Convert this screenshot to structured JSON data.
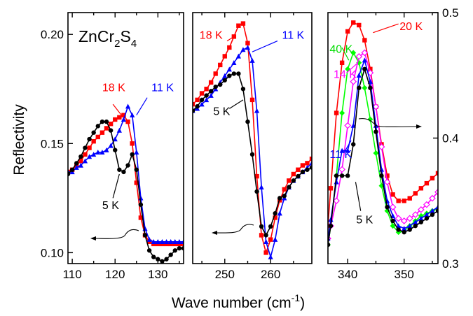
{
  "chart_data": {
    "type": "line",
    "xlabel": "Wave number (cm",
    "xlabel_sup": "-1",
    "xlabel_close": ")",
    "ylabel": "Reflectivity",
    "compound": {
      "base": "ZnCr",
      "sub1": "2",
      "mid": "S",
      "sub2": "4"
    },
    "colors": {
      "5 K": "#000000",
      "11 K": "#0000ff",
      "18 K": "#ff0000",
      "20 K": "#ff0000",
      "14 K": "#ff00ff",
      "40 K": "#00ff00"
    },
    "panels": [
      {
        "xlim": [
          109,
          136
        ],
        "ylim": [
          0.095,
          0.21
        ],
        "xticks": [
          110,
          120,
          130
        ],
        "xtick_labels": [
          "110",
          "120",
          "130"
        ],
        "yticks": [
          0.1,
          0.15,
          0.2
        ],
        "ytick_labels": [
          "0.10",
          "0.15",
          "0.20"
        ],
        "axis": "left",
        "series": [
          {
            "name": "18 K",
            "marker": "square",
            "x": [
              109,
              110,
              111,
              112,
              113,
              114,
              115,
              116,
              117,
              118,
              119,
              120,
              121,
              122,
              123,
              124,
              125,
              126,
              127,
              128,
              129,
              130,
              131,
              132,
              133,
              134,
              135,
              136
            ],
            "y": [
              0.137,
              0.138,
              0.14,
              0.142,
              0.145,
              0.148,
              0.151,
              0.153,
              0.155,
              0.157,
              0.159,
              0.161,
              0.162,
              0.163,
              0.16,
              0.15,
              0.132,
              0.116,
              0.108,
              0.105,
              0.104,
              0.104,
              0.104,
              0.104,
              0.104,
              0.104,
              0.104,
              0.104
            ]
          },
          {
            "name": "11 K",
            "marker": "triangle",
            "x": [
              109,
              110,
              111,
              112,
              113,
              114,
              115,
              116,
              117,
              118,
              119,
              120,
              121,
              122,
              123,
              124,
              125,
              126,
              127,
              128,
              129,
              130,
              131,
              132,
              133,
              134,
              135,
              136
            ],
            "y": [
              0.137,
              0.137,
              0.139,
              0.14,
              0.142,
              0.144,
              0.145,
              0.146,
              0.146,
              0.147,
              0.149,
              0.152,
              0.156,
              0.161,
              0.167,
              0.163,
              0.146,
              0.125,
              0.111,
              0.106,
              0.105,
              0.105,
              0.105,
              0.105,
              0.105,
              0.105,
              0.105,
              0.105
            ]
          },
          {
            "name": "5 K",
            "marker": "circle",
            "x": [
              109,
              110,
              111,
              112,
              113,
              114,
              115,
              116,
              117,
              118,
              119,
              120,
              121,
              122,
              123,
              124,
              125,
              126,
              127,
              128,
              129,
              130,
              131,
              132,
              133,
              134,
              135,
              136
            ],
            "y": [
              0.136,
              0.138,
              0.141,
              0.144,
              0.148,
              0.152,
              0.155,
              0.158,
              0.16,
              0.16,
              0.156,
              0.147,
              0.138,
              0.137,
              0.14,
              0.145,
              0.138,
              0.122,
              0.108,
              0.101,
              0.098,
              0.097,
              0.096,
              0.097,
              0.099,
              0.101,
              0.102,
              0.102
            ]
          }
        ],
        "labels": [
          {
            "text": "18 K",
            "color": "#ff0000",
            "at": [
              117.0,
              0.174
            ]
          },
          {
            "text": "11 K",
            "color": "#0000ff",
            "at": [
              128.5,
              0.174
            ]
          },
          {
            "text": "5 K",
            "color": "#000000",
            "at": [
              117.0,
              0.12
            ]
          }
        ],
        "leaders": [
          {
            "color": "#ff0000",
            "from": [
              119.5,
              0.168
            ],
            "to": [
              121.5,
              0.163
            ]
          },
          {
            "color": "#0000ff",
            "from": [
              127.5,
              0.171
            ],
            "to": [
              125.0,
              0.163
            ]
          },
          {
            "color": "#000000",
            "from": [
              119.5,
              0.125
            ],
            "to": [
              121.0,
              0.136
            ]
          }
        ]
      },
      {
        "xlim": [
          243,
          269
        ],
        "ylim": [
          0.095,
          0.21
        ],
        "xticks": [
          250,
          260
        ],
        "xtick_labels": [
          "250",
          "260"
        ],
        "yticks": [],
        "ytick_labels": [],
        "axis": "left",
        "series": [
          {
            "name": "18 K",
            "marker": "square",
            "x": [
              243,
              244,
              245,
              246,
              247,
              248,
              249,
              250,
              251,
              252,
              253,
              254,
              255,
              256,
              257,
              258,
              259,
              260,
              261,
              262,
              263,
              264,
              265,
              266,
              267,
              268,
              269
            ],
            "y": [
              0.168,
              0.17,
              0.173,
              0.175,
              0.178,
              0.182,
              0.186,
              0.19,
              0.194,
              0.199,
              0.204,
              0.205,
              0.196,
              0.17,
              0.135,
              0.108,
              0.1,
              0.106,
              0.116,
              0.124,
              0.129,
              0.133,
              0.136,
              0.138,
              0.14,
              0.141,
              0.143
            ]
          },
          {
            "name": "11 K",
            "marker": "triangle",
            "x": [
              243,
              244,
              245,
              246,
              247,
              248,
              249,
              250,
              251,
              252,
              253,
              254,
              255,
              256,
              257,
              258,
              259,
              260,
              261,
              262,
              263,
              264,
              265,
              266,
              267,
              268,
              269
            ],
            "y": [
              0.165,
              0.166,
              0.168,
              0.17,
              0.172,
              0.175,
              0.178,
              0.181,
              0.184,
              0.187,
              0.19,
              0.193,
              0.194,
              0.188,
              0.165,
              0.13,
              0.105,
              0.098,
              0.106,
              0.118,
              0.125,
              0.13,
              0.133,
              0.135,
              0.137,
              0.139,
              0.141
            ]
          },
          {
            "name": "5 K",
            "marker": "circle",
            "x": [
              243,
              244,
              245,
              246,
              247,
              248,
              249,
              250,
              251,
              252,
              253,
              254,
              255,
              256,
              257,
              258,
              259,
              260,
              261,
              262,
              263,
              264,
              265,
              266,
              267,
              268,
              269
            ],
            "y": [
              0.165,
              0.167,
              0.17,
              0.172,
              0.174,
              0.176,
              0.177,
              0.179,
              0.181,
              0.182,
              0.182,
              0.175,
              0.16,
              0.145,
              0.128,
              0.112,
              0.108,
              0.112,
              0.118,
              0.125,
              0.126,
              0.13,
              0.133,
              0.135,
              0.137,
              0.138,
              0.139
            ]
          }
        ],
        "labels": [
          {
            "text": "18 K",
            "color": "#ff0000",
            "at": [
              244.5,
              0.198
            ]
          },
          {
            "text": "11 K",
            "color": "#0000ff",
            "at": [
              262.5,
              0.198
            ]
          },
          {
            "text": "5 K",
            "color": "#000000",
            "at": [
              247.5,
              0.163
            ]
          }
        ],
        "leaders": [
          {
            "color": "#ff0000",
            "from": [
              250.5,
              0.197
            ],
            "to": [
              252.0,
              0.199
            ]
          },
          {
            "color": "#0000ff",
            "from": [
              261.5,
              0.197
            ],
            "to": [
              256.0,
              0.192
            ]
          },
          {
            "color": "#000000",
            "from": [
              251.0,
              0.166
            ],
            "to": [
              254.0,
              0.17
            ]
          }
        ]
      },
      {
        "xlim": [
          336.5,
          356
        ],
        "ylim": [
          0.3,
          0.5
        ],
        "xticks": [
          340,
          350
        ],
        "xtick_labels": [
          "340",
          "350"
        ],
        "yticks": [
          0.3,
          0.4,
          0.5
        ],
        "ytick_labels": [
          "0.3",
          "0.4",
          "0.5"
        ],
        "axis": "right",
        "series": [
          {
            "name": "20 K",
            "marker": "square",
            "x": [
              336.5,
              337,
              338,
              339,
              340,
              341,
              342,
              343,
              344,
              345,
              346,
              347,
              348,
              349,
              350,
              351,
              352,
              353,
              354,
              355,
              356
            ],
            "y": [
              0.33,
              0.36,
              0.42,
              0.46,
              0.485,
              0.492,
              0.49,
              0.478,
              0.455,
              0.425,
              0.395,
              0.37,
              0.355,
              0.35,
              0.35,
              0.352,
              0.356,
              0.36,
              0.364,
              0.368,
              0.372
            ]
          },
          {
            "name": "40 K",
            "marker": "diamond",
            "x": [
              336.5,
              337,
              338,
              339,
              340,
              341,
              342,
              343,
              344,
              345,
              346,
              347,
              348,
              349,
              350,
              351,
              352,
              353,
              354,
              355,
              356
            ],
            "y": [
              0.315,
              0.33,
              0.37,
              0.42,
              0.455,
              0.468,
              0.46,
              0.44,
              0.415,
              0.388,
              0.362,
              0.342,
              0.33,
              0.325,
              0.326,
              0.33,
              0.334,
              0.338,
              0.34,
              0.342,
              0.344
            ]
          },
          {
            "name": "14 K",
            "marker": "open-diamond",
            "x": [
              336.5,
              337,
              338,
              339,
              340,
              341,
              342,
              343,
              344,
              345,
              346,
              347,
              348,
              349,
              350,
              351,
              352,
              353,
              354,
              355,
              356
            ],
            "y": [
              0.32,
              0.33,
              0.35,
              0.375,
              0.41,
              0.445,
              0.465,
              0.468,
              0.452,
              0.425,
              0.393,
              0.365,
              0.345,
              0.336,
              0.334,
              0.336,
              0.339,
              0.343,
              0.347,
              0.352,
              0.357
            ]
          },
          {
            "name": "11 K",
            "marker": "triangle",
            "x": [
              336.5,
              337,
              338,
              339,
              340,
              341,
              342,
              343,
              344,
              345,
              346,
              347,
              348,
              349,
              350,
              351,
              352,
              353,
              354,
              355,
              356
            ],
            "y": [
              0.32,
              0.335,
              0.365,
              0.39,
              0.39,
              0.41,
              0.45,
              0.462,
              0.445,
              0.41,
              0.375,
              0.35,
              0.338,
              0.33,
              0.328,
              0.33,
              0.333,
              0.336,
              0.339,
              0.342,
              0.345
            ]
          },
          {
            "name": "5 K",
            "marker": "circle",
            "x": [
              336.5,
              337,
              338,
              339,
              340,
              341,
              342,
              343,
              344,
              345,
              346,
              347,
              348,
              349,
              350,
              351,
              352,
              353,
              354,
              355,
              356
            ],
            "y": [
              0.315,
              0.33,
              0.37,
              0.37,
              0.37,
              0.395,
              0.44,
              0.455,
              0.44,
              0.405,
              0.37,
              0.345,
              0.334,
              0.327,
              0.325,
              0.327,
              0.33,
              0.333,
              0.336,
              0.339,
              0.342
            ]
          }
        ],
        "labels": [
          {
            "text": "20 K",
            "color": "#ff0000",
            "at": [
              349.2,
              0.486
            ]
          },
          {
            "text": "40 K",
            "color": "#00dd00",
            "at": [
              336.8,
              0.468
            ]
          },
          {
            "text": "14 K",
            "color": "#ff00ff",
            "at": [
              337.5,
              0.448
            ]
          },
          {
            "text": "11 K",
            "color": "#0000ff",
            "at": [
              336.8,
              0.384
            ]
          },
          {
            "text": "5 K",
            "color": "#000000",
            "at": [
              341.5,
              0.332
            ]
          }
        ],
        "leaders": [
          {
            "color": "#ff0000",
            "from": [
              349.0,
              0.491
            ],
            "to": [
              344.5,
              0.484
            ]
          },
          {
            "color": "#00dd00",
            "from": [
              339.0,
              0.472
            ],
            "to": [
              340.2,
              0.462
            ]
          },
          {
            "color": "#ff00ff",
            "from": [
              339.8,
              0.452
            ],
            "to": [
              341.8,
              0.46
            ]
          },
          {
            "color": "#0000ff",
            "from": [
              339.3,
              0.388
            ],
            "to": [
              340.6,
              0.398
            ]
          },
          {
            "color": "#000000",
            "from": [
              342.3,
              0.342
            ],
            "to": [
              341.4,
              0.365
            ]
          }
        ]
      }
    ]
  }
}
